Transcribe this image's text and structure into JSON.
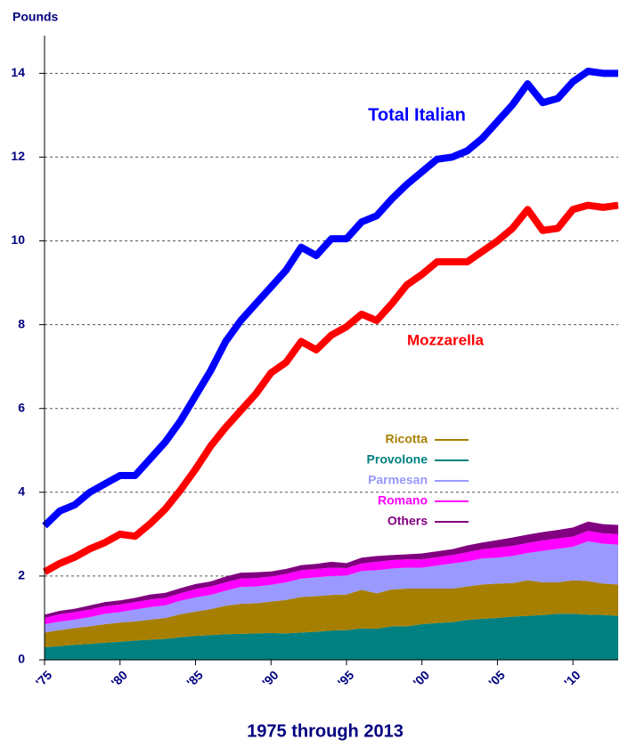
{
  "chart_data": {
    "type": "line",
    "y_label": "Pounds",
    "x_label": "1975 through 2013",
    "x": [
      1975,
      1976,
      1977,
      1978,
      1979,
      1980,
      1981,
      1982,
      1983,
      1984,
      1985,
      1986,
      1987,
      1988,
      1989,
      1990,
      1991,
      1992,
      1993,
      1994,
      1995,
      1996,
      1997,
      1998,
      1999,
      2000,
      2001,
      2002,
      2003,
      2004,
      2005,
      2006,
      2007,
      2008,
      2009,
      2010,
      2011,
      2012,
      2013
    ],
    "xlim": [
      1975,
      2013
    ],
    "xticks": [
      {
        "value": 1975,
        "label": "'75"
      },
      {
        "value": 1980,
        "label": "'80"
      },
      {
        "value": 1985,
        "label": "'85"
      },
      {
        "value": 1990,
        "label": "'90"
      },
      {
        "value": 1995,
        "label": "'95"
      },
      {
        "value": 2000,
        "label": "'00"
      },
      {
        "value": 2005,
        "label": "'05"
      },
      {
        "value": 2010,
        "label": "'10"
      }
    ],
    "ylim": [
      0,
      14.9
    ],
    "yticks": [
      0,
      2,
      4,
      6,
      8,
      10,
      12,
      14
    ],
    "grid": true,
    "series": [
      {
        "name": "Provolone",
        "kind": "area",
        "color": "#008080",
        "values": [
          0.3,
          0.33,
          0.36,
          0.38,
          0.41,
          0.43,
          0.46,
          0.48,
          0.5,
          0.54,
          0.57,
          0.59,
          0.61,
          0.62,
          0.63,
          0.64,
          0.63,
          0.65,
          0.67,
          0.7,
          0.71,
          0.75,
          0.74,
          0.8,
          0.8,
          0.85,
          0.88,
          0.9,
          0.95,
          0.98,
          1.0,
          1.03,
          1.05,
          1.07,
          1.1,
          1.1,
          1.08,
          1.07,
          1.05
        ]
      },
      {
        "name": "Ricotta",
        "kind": "area",
        "color": "#a67f00",
        "values": [
          0.35,
          0.38,
          0.4,
          0.42,
          0.44,
          0.46,
          0.46,
          0.48,
          0.5,
          0.55,
          0.58,
          0.62,
          0.68,
          0.72,
          0.72,
          0.75,
          0.8,
          0.85,
          0.85,
          0.85,
          0.85,
          0.92,
          0.85,
          0.88,
          0.9,
          0.85,
          0.82,
          0.8,
          0.8,
          0.82,
          0.82,
          0.8,
          0.85,
          0.78,
          0.75,
          0.8,
          0.8,
          0.75,
          0.75
        ]
      },
      {
        "name": "Parmesan",
        "kind": "area",
        "color": "#9999ff",
        "values": [
          0.2,
          0.2,
          0.2,
          0.22,
          0.25,
          0.25,
          0.28,
          0.3,
          0.3,
          0.32,
          0.34,
          0.34,
          0.36,
          0.4,
          0.4,
          0.4,
          0.42,
          0.44,
          0.45,
          0.45,
          0.45,
          0.45,
          0.55,
          0.5,
          0.5,
          0.5,
          0.55,
          0.6,
          0.6,
          0.62,
          0.62,
          0.65,
          0.65,
          0.75,
          0.8,
          0.8,
          0.95,
          0.95,
          0.95
        ]
      },
      {
        "name": "Romano",
        "kind": "area",
        "color": "#ff00ff",
        "values": [
          0.15,
          0.18,
          0.18,
          0.18,
          0.18,
          0.18,
          0.18,
          0.18,
          0.18,
          0.18,
          0.2,
          0.2,
          0.2,
          0.2,
          0.2,
          0.2,
          0.2,
          0.2,
          0.2,
          0.2,
          0.18,
          0.18,
          0.2,
          0.2,
          0.2,
          0.2,
          0.2,
          0.2,
          0.22,
          0.22,
          0.24,
          0.24,
          0.24,
          0.25,
          0.25,
          0.24,
          0.25,
          0.25,
          0.25
        ]
      },
      {
        "name": "Others",
        "kind": "area",
        "color": "#800080",
        "values": [
          0.08,
          0.08,
          0.08,
          0.1,
          0.1,
          0.1,
          0.1,
          0.12,
          0.12,
          0.12,
          0.12,
          0.12,
          0.14,
          0.14,
          0.14,
          0.12,
          0.12,
          0.12,
          0.12,
          0.14,
          0.12,
          0.14,
          0.14,
          0.12,
          0.12,
          0.14,
          0.14,
          0.14,
          0.16,
          0.16,
          0.18,
          0.2,
          0.2,
          0.2,
          0.2,
          0.22,
          0.22,
          0.22,
          0.22
        ]
      },
      {
        "name": "Mozzarella",
        "kind": "line",
        "color": "#ff0000",
        "values": [
          2.1,
          2.3,
          2.45,
          2.65,
          2.8,
          3.0,
          2.95,
          3.25,
          3.6,
          4.05,
          4.55,
          5.1,
          5.55,
          5.95,
          6.35,
          6.85,
          7.1,
          7.6,
          7.4,
          7.75,
          7.95,
          8.25,
          8.1,
          8.5,
          8.95,
          9.2,
          9.5,
          9.5,
          9.5,
          9.75,
          10.0,
          10.3,
          10.75,
          10.25,
          10.3,
          10.75,
          10.85,
          10.8,
          10.85
        ]
      },
      {
        "name": "Total Italian",
        "kind": "line",
        "color": "#0000ff",
        "values": [
          3.2,
          3.55,
          3.7,
          4.0,
          4.2,
          4.4,
          4.4,
          4.8,
          5.2,
          5.7,
          6.3,
          6.9,
          7.6,
          8.1,
          8.5,
          8.9,
          9.3,
          9.85,
          9.65,
          10.05,
          10.05,
          10.45,
          10.6,
          11.0,
          11.35,
          11.65,
          11.95,
          12.0,
          12.15,
          12.45,
          12.85,
          13.25,
          13.75,
          13.3,
          13.4,
          13.8,
          14.05,
          14.0,
          14.0
        ]
      }
    ]
  }
}
